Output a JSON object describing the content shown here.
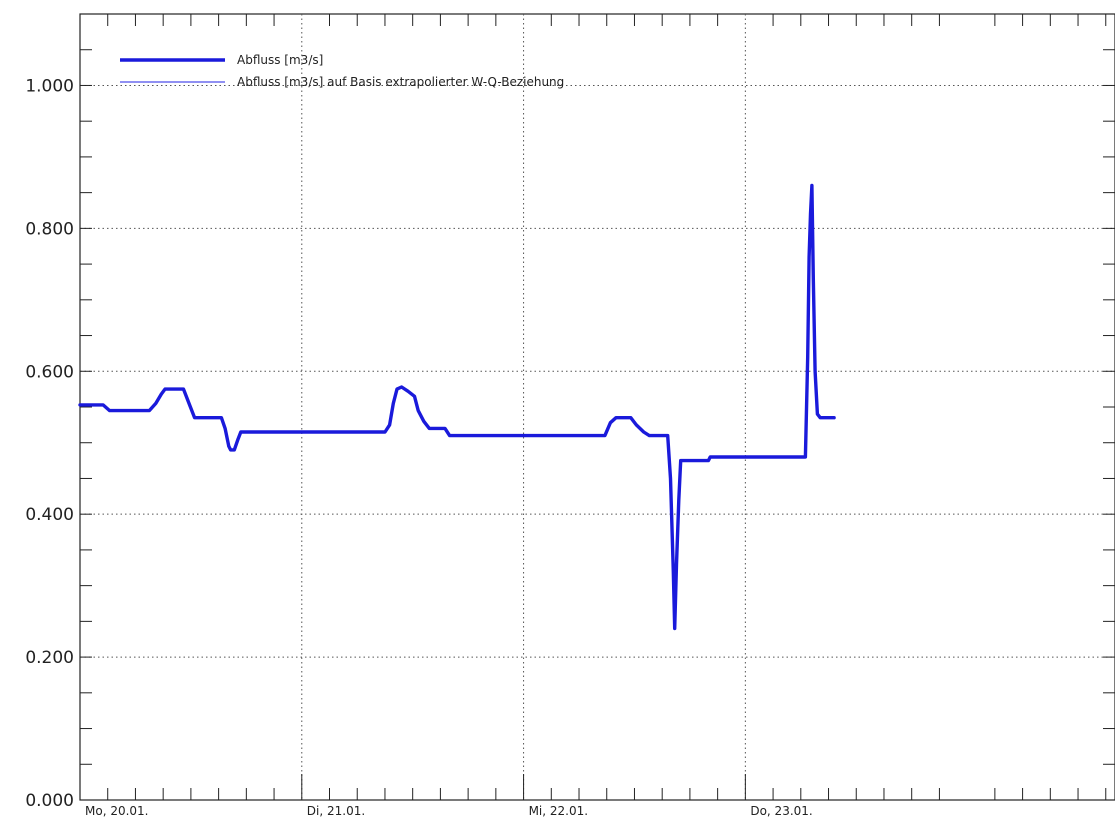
{
  "chart_data": {
    "type": "line",
    "title": "",
    "xlabel": "",
    "ylabel": "",
    "x_unit": "hours since Mo 00:00",
    "xlim": [
      0,
      112
    ],
    "ylim": [
      0.0,
      1.1
    ],
    "y_ticks": [
      "0.000",
      "0.200",
      "0.400",
      "0.600",
      "0.800",
      "1.000"
    ],
    "y_tick_values": [
      0.0,
      0.2,
      0.4,
      0.6,
      0.8,
      1.0
    ],
    "x_day_labels": [
      "Mo, 20.01.",
      "Di, 21.01.",
      "Mi, 22.01.",
      "Do, 23.01."
    ],
    "x_day_positions": [
      0,
      24,
      48,
      72
    ],
    "grid": true,
    "legend_position": "top-left",
    "legend": [
      {
        "label": "Abfluss [m3/s]",
        "color": "#1a1adb",
        "style": "thick"
      },
      {
        "label": "Abfluss [m3/s] auf Basis extrapolierter W-Q-Beziehung",
        "color": "#8080f0",
        "style": "thin"
      }
    ],
    "series": [
      {
        "name": "Abfluss [m3/s]",
        "color": "#1a1adb",
        "points": [
          [
            0,
            0.553
          ],
          [
            2.5,
            0.553
          ],
          [
            3.2,
            0.545
          ],
          [
            7.5,
            0.545
          ],
          [
            8.2,
            0.555
          ],
          [
            8.8,
            0.568
          ],
          [
            9.2,
            0.575
          ],
          [
            11.2,
            0.575
          ],
          [
            11.8,
            0.555
          ],
          [
            12.4,
            0.535
          ],
          [
            15.3,
            0.535
          ],
          [
            15.7,
            0.52
          ],
          [
            16.1,
            0.495
          ],
          [
            16.3,
            0.49
          ],
          [
            16.7,
            0.49
          ],
          [
            17.1,
            0.505
          ],
          [
            17.4,
            0.515
          ],
          [
            33.0,
            0.515
          ],
          [
            33.5,
            0.525
          ],
          [
            33.9,
            0.555
          ],
          [
            34.3,
            0.575
          ],
          [
            34.8,
            0.578
          ],
          [
            35.5,
            0.572
          ],
          [
            36.2,
            0.565
          ],
          [
            36.6,
            0.545
          ],
          [
            37.2,
            0.53
          ],
          [
            37.8,
            0.52
          ],
          [
            39.5,
            0.52
          ],
          [
            40.0,
            0.51
          ],
          [
            56.8,
            0.51
          ],
          [
            57.4,
            0.528
          ],
          [
            58.0,
            0.535
          ],
          [
            59.6,
            0.535
          ],
          [
            60.2,
            0.525
          ],
          [
            61.0,
            0.515
          ],
          [
            61.6,
            0.51
          ],
          [
            63.6,
            0.51
          ],
          [
            63.9,
            0.45
          ],
          [
            64.2,
            0.32
          ],
          [
            64.35,
            0.24
          ],
          [
            64.55,
            0.33
          ],
          [
            64.8,
            0.42
          ],
          [
            65.0,
            0.475
          ],
          [
            68.0,
            0.475
          ],
          [
            68.2,
            0.48
          ],
          [
            78.5,
            0.48
          ],
          [
            78.75,
            0.62
          ],
          [
            78.9,
            0.76
          ],
          [
            79.05,
            0.82
          ],
          [
            79.2,
            0.86
          ],
          [
            79.35,
            0.73
          ],
          [
            79.55,
            0.6
          ],
          [
            79.8,
            0.54
          ],
          [
            80.1,
            0.535
          ],
          [
            81.6,
            0.535
          ]
        ]
      }
    ]
  }
}
